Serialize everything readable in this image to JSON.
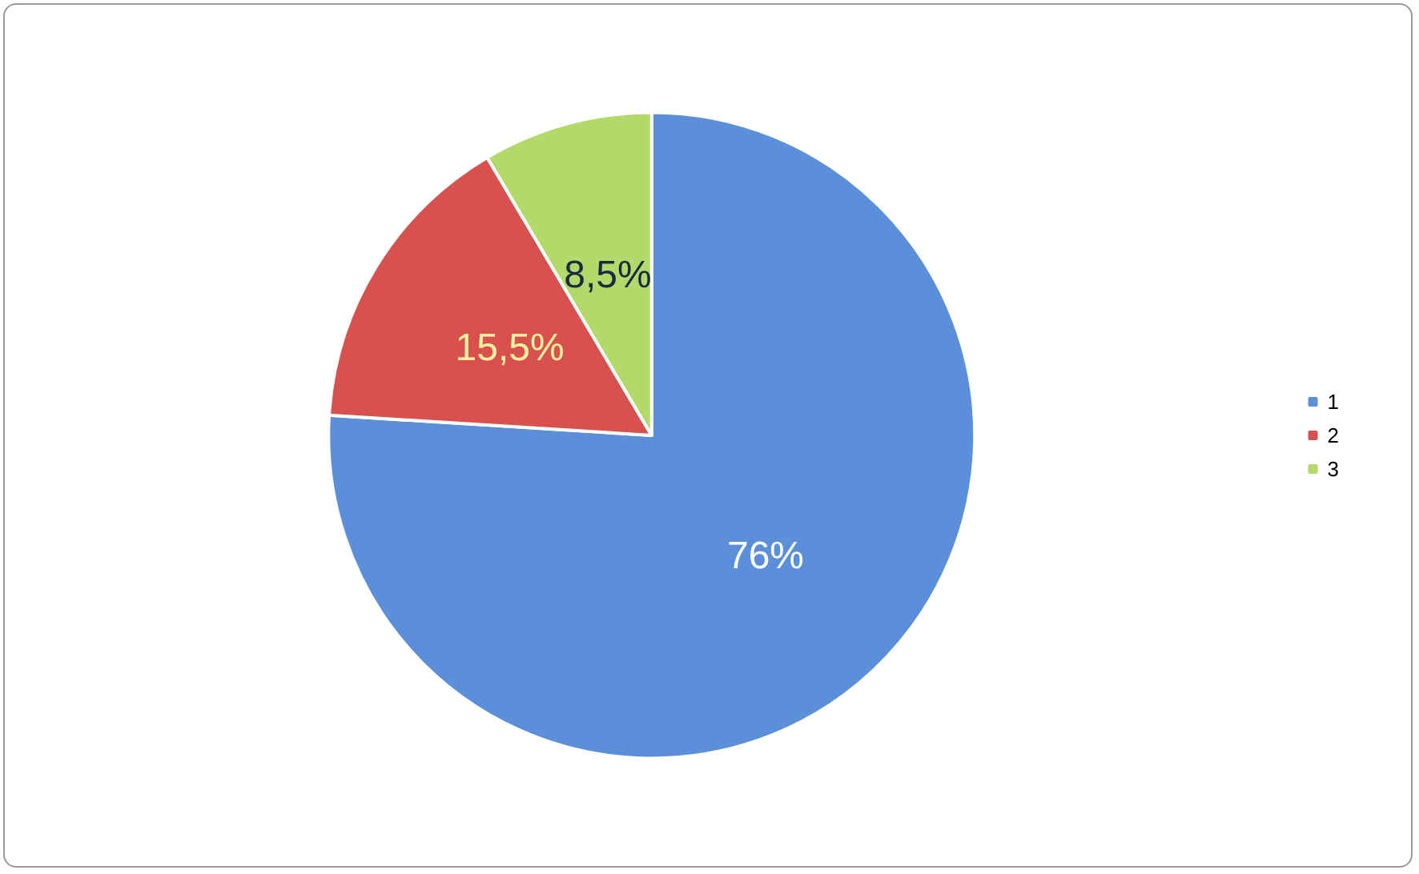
{
  "chart_data": {
    "type": "pie",
    "categories": [
      "1",
      "2",
      "3"
    ],
    "values": [
      76,
      15.5,
      8.5
    ],
    "colors": [
      "#5b8fd9",
      "#d9514e",
      "#b3d96a"
    ],
    "value_labels": [
      "76%",
      "15,5%",
      "8,5%"
    ],
    "legend": "right"
  }
}
